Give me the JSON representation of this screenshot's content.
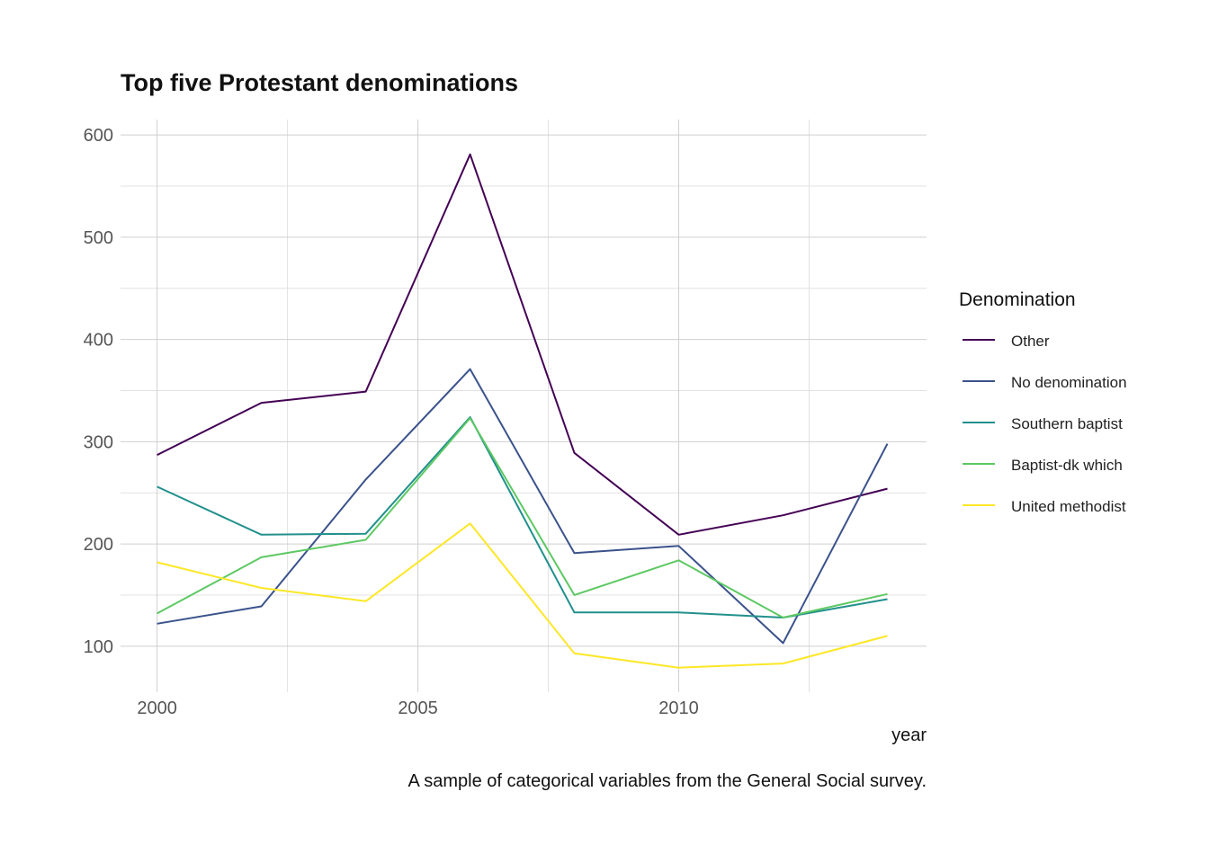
{
  "chart_data": {
    "type": "line",
    "title": "Top five Protestant denominations",
    "caption": "A sample of categorical variables from the General Social survey.",
    "xlabel": "year",
    "ylabel": "",
    "xlim": [
      1999.3,
      2014.75
    ],
    "ylim": [
      55,
      615
    ],
    "x_ticks": [
      2000,
      2005,
      2010
    ],
    "x_minor_ticks": [
      2002.5,
      2007.5,
      2012.5
    ],
    "y_ticks": [
      100,
      200,
      300,
      400,
      500,
      600
    ],
    "y_minor_ticks": [
      150,
      250,
      350,
      450,
      550
    ],
    "grid": true,
    "legend_title": "Denomination",
    "legend_position": "right",
    "x": [
      2000,
      2002,
      2004,
      2006,
      2008,
      2010,
      2012,
      2014
    ],
    "series": [
      {
        "name": "Other",
        "color": "#440154",
        "values": [
          287,
          338,
          349,
          581,
          289,
          209,
          228,
          254
        ]
      },
      {
        "name": "No denomination",
        "color": "#3B528B",
        "values": [
          122,
          139,
          263,
          371,
          191,
          198,
          103,
          298
        ]
      },
      {
        "name": "Southern baptist",
        "color": "#21908C",
        "values": [
          256,
          209,
          210,
          324,
          133,
          133,
          128,
          146
        ]
      },
      {
        "name": "Baptist-dk which",
        "color": "#5DC863",
        "values": [
          132,
          187,
          204,
          323,
          150,
          184,
          128,
          151
        ]
      },
      {
        "name": "United methodist",
        "color": "#FDE725",
        "values": [
          182,
          157,
          144,
          220,
          93,
          79,
          83,
          110
        ]
      }
    ]
  }
}
